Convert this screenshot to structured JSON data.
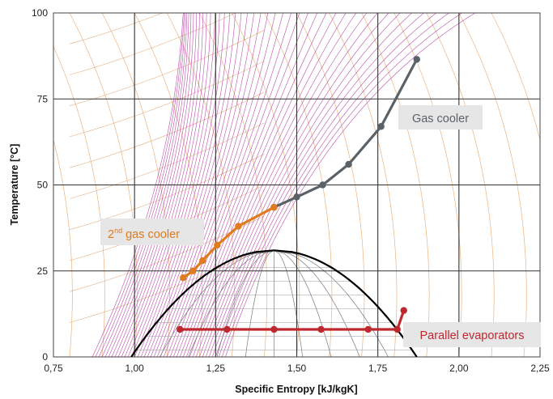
{
  "chart_data": {
    "type": "line",
    "xlabel": "Specific Entropy [kJ/kgK]",
    "ylabel": "Temperature [°C]",
    "xlim": [
      0.75,
      2.25
    ],
    "ylim": [
      0,
      100
    ],
    "x_ticks": [
      "0,75",
      "1,00",
      "1,25",
      "1,50",
      "1,75",
      "2,00",
      "2,25"
    ],
    "x_tick_values": [
      0.75,
      1.0,
      1.25,
      1.5,
      1.75,
      2.0,
      2.25
    ],
    "y_ticks": [
      "0",
      "25",
      "50",
      "75",
      "100"
    ],
    "y_tick_values": [
      0,
      25,
      50,
      75,
      100
    ],
    "grid": true,
    "colors": {
      "gas_cooler": "#5a6268",
      "second_gas_cooler": "#e07b1e",
      "parallel_evaporators": "#c0282f",
      "saturation_dome": "#000000",
      "isobars": "#b0309e",
      "enthalpy_lines": "#e8a060"
    },
    "series": [
      {
        "key": "gas_cooler",
        "x": [
          1.43,
          1.5,
          1.58,
          1.66,
          1.76,
          1.87
        ],
        "y": [
          43.5,
          46.5,
          50.0,
          56.0,
          67.0,
          86.5
        ]
      },
      {
        "key": "second_gas_cooler",
        "x": [
          1.15,
          1.18,
          1.21,
          1.255,
          1.32,
          1.43
        ],
        "y": [
          23.0,
          25.0,
          28.0,
          32.5,
          38.0,
          43.5
        ]
      },
      {
        "key": "parallel_evaporators",
        "x": [
          1.14,
          1.285,
          1.43,
          1.575,
          1.72,
          1.81,
          1.83
        ],
        "y": [
          8.0,
          8.0,
          8.0,
          8.0,
          8.0,
          8.0,
          13.5
        ]
      }
    ],
    "annotations": {
      "gas_cooler": "Gas cooler",
      "second_gas_cooler_main": "2",
      "second_gas_cooler_sup": "nd",
      "second_gas_cooler_rest": " gas cooler",
      "parallel_evaporators": "Parallel evaporators"
    }
  }
}
